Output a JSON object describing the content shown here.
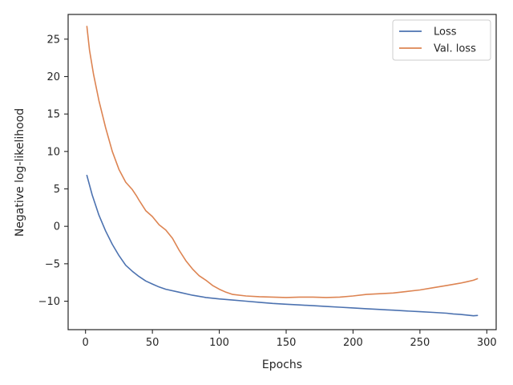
{
  "chart_data": {
    "type": "line",
    "title": "",
    "xlabel": "Epochs",
    "ylabel": "Negative log-likelihood",
    "xlim": [
      -13,
      307
    ],
    "ylim": [
      -13.8,
      28.3
    ],
    "xticks": [
      0,
      50,
      100,
      150,
      200,
      250,
      300
    ],
    "xtick_labels": [
      "0",
      "50",
      "100",
      "150",
      "200",
      "250",
      "300"
    ],
    "yticks": [
      -10,
      -5,
      0,
      5,
      10,
      15,
      20,
      25
    ],
    "ytick_labels": [
      "−10",
      "−5",
      "0",
      "5",
      "10",
      "15",
      "20",
      "25"
    ],
    "grid": false,
    "legend_position": "top-right",
    "series": [
      {
        "name": "Loss",
        "color": "#4c72b0",
        "x": [
          1,
          5,
          10,
          15,
          20,
          25,
          30,
          35,
          40,
          45,
          50,
          55,
          60,
          70,
          80,
          90,
          100,
          110,
          120,
          130,
          140,
          150,
          160,
          170,
          180,
          190,
          200,
          210,
          220,
          225,
          230,
          240,
          250,
          260,
          270,
          275,
          280,
          285,
          290,
          293
        ],
        "y": [
          6.8,
          4.2,
          1.5,
          -0.6,
          -2.4,
          -3.9,
          -5.2,
          -6.0,
          -6.7,
          -7.3,
          -7.7,
          -8.1,
          -8.4,
          -8.8,
          -9.2,
          -9.5,
          -9.7,
          -9.85,
          -10.0,
          -10.15,
          -10.3,
          -10.4,
          -10.5,
          -10.6,
          -10.7,
          -10.8,
          -10.9,
          -11.0,
          -11.1,
          -11.15,
          -11.2,
          -11.3,
          -11.4,
          -11.5,
          -11.6,
          -11.7,
          -11.75,
          -11.85,
          -11.95,
          -11.9
        ]
      },
      {
        "name": "Val. loss",
        "color": "#dd8452",
        "x": [
          1,
          3,
          6,
          10,
          15,
          20,
          25,
          30,
          35,
          38,
          40,
          45,
          50,
          55,
          60,
          65,
          70,
          75,
          80,
          85,
          90,
          95,
          100,
          105,
          110,
          120,
          130,
          140,
          150,
          160,
          170,
          180,
          190,
          200,
          210,
          220,
          230,
          240,
          250,
          260,
          270,
          280,
          285,
          290,
          293
        ],
        "y": [
          26.7,
          23.5,
          20.3,
          16.8,
          13.2,
          10.0,
          7.6,
          5.9,
          4.9,
          4.1,
          3.5,
          2.1,
          1.3,
          0.2,
          -0.5,
          -1.6,
          -3.2,
          -4.6,
          -5.7,
          -6.6,
          -7.2,
          -7.9,
          -8.4,
          -8.8,
          -9.1,
          -9.3,
          -9.4,
          -9.45,
          -9.5,
          -9.45,
          -9.45,
          -9.5,
          -9.45,
          -9.3,
          -9.1,
          -9.0,
          -8.9,
          -8.7,
          -8.5,
          -8.2,
          -7.9,
          -7.6,
          -7.4,
          -7.2,
          -7.0
        ]
      }
    ]
  }
}
